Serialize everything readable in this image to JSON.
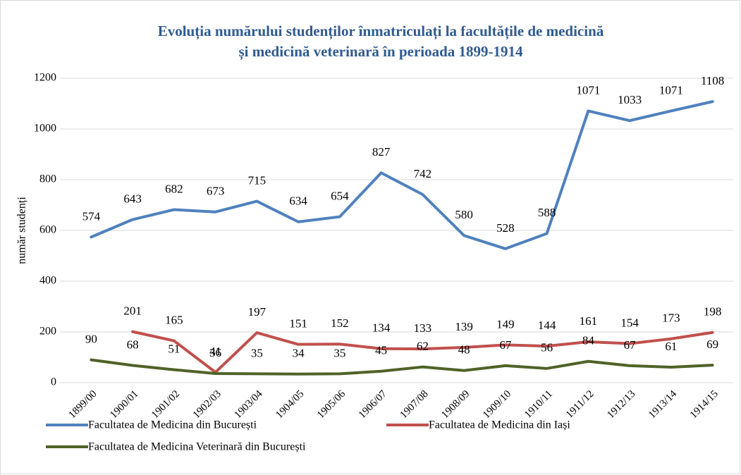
{
  "chart_data": {
    "type": "line",
    "title": [
      "Evoluția numărului studenților înmatriculați la facultățile de medicină",
      "și medicină veterinară în perioada 1899-1914"
    ],
    "y_label": "număr studenți",
    "categories": [
      "1899/00",
      "1900/01",
      "1901/02",
      "1902/03",
      "1903/04",
      "1904/05",
      "1905/06",
      "1906/07",
      "1907/08",
      "1908/09",
      "1909/10",
      "1910/11",
      "1911/12",
      "1912/13",
      "1913/14",
      "1914/15"
    ],
    "series": [
      {
        "name": "Facultatea de Medicina din București",
        "color": "#4f81bd",
        "values": [
          574,
          643,
          682,
          673,
          715,
          634,
          654,
          827,
          742,
          580,
          528,
          588,
          1071,
          1033,
          1071,
          1108
        ]
      },
      {
        "name": "Facultatea de Medicina din Iași",
        "color": "#c0504d",
        "values": [
          null,
          201,
          165,
          41,
          197,
          151,
          152,
          134,
          133,
          139,
          149,
          144,
          161,
          154,
          173,
          198
        ]
      },
      {
        "name": "Facultatea de Medicina Veterinară din București",
        "color": "#4f6228",
        "values": [
          90,
          68,
          51,
          36,
          35,
          34,
          35,
          45,
          62,
          48,
          67,
          56,
          84,
          67,
          61,
          69
        ]
      }
    ],
    "ylim": [
      0,
      1200
    ],
    "yticks": [
      0,
      200,
      400,
      600,
      800,
      1000,
      1200
    ],
    "grid": true,
    "legend": "bottom"
  }
}
